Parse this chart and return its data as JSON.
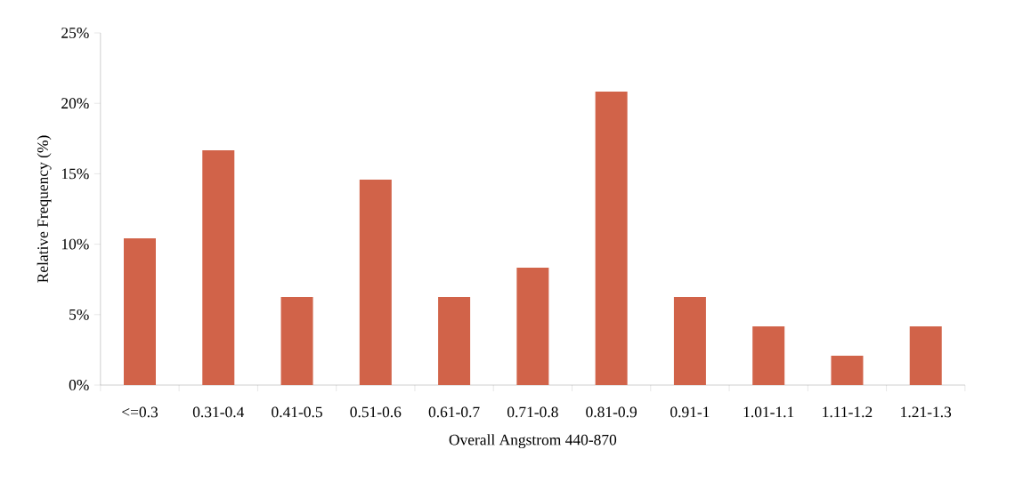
{
  "chart_data": {
    "type": "bar",
    "xlabel": "Overall Angstrom 440-870",
    "ylabel": "Relative Frequency (%)",
    "categories": [
      "<=0.3",
      "0.31-0.4",
      "0.41-0.5",
      "0.51-0.6",
      "0.61-0.7",
      "0.71-0.8",
      "0.81-0.9",
      "0.91-1",
      "1.01-1.1",
      "1.11-1.2",
      "1.21-1.3"
    ],
    "values": [
      10.42,
      16.67,
      6.25,
      14.58,
      6.25,
      8.33,
      20.83,
      6.25,
      4.17,
      2.08,
      4.17
    ],
    "color": "#d16349",
    "ylim": [
      0,
      25
    ],
    "yticks": [
      {
        "value": 0,
        "label": "0%"
      },
      {
        "value": 5,
        "label": "5%"
      },
      {
        "value": 10,
        "label": "10%"
      },
      {
        "value": 15,
        "label": "15%"
      },
      {
        "value": 20,
        "label": "20%"
      },
      {
        "value": 25,
        "label": "25%"
      }
    ]
  }
}
